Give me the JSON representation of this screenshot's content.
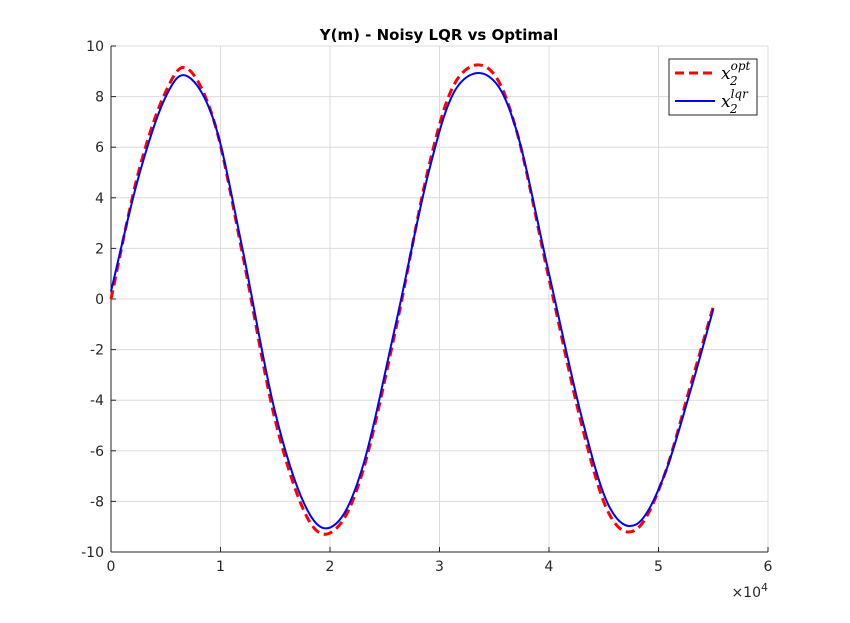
{
  "chart_data": {
    "type": "line",
    "title": "Y(m) - Noisy LQR vs Optimal",
    "xlabel": "",
    "ylabel": "",
    "x_scale_label": "×10",
    "x_scale_exponent": "4",
    "xlim": [
      0,
      60000
    ],
    "ylim": [
      -10,
      10
    ],
    "xticks": [
      0,
      10000,
      20000,
      30000,
      40000,
      50000,
      60000
    ],
    "xtick_labels": [
      "0",
      "1",
      "2",
      "3",
      "4",
      "5",
      "6"
    ],
    "yticks": [
      -10,
      -8,
      -6,
      -4,
      -2,
      0,
      2,
      4,
      6,
      8,
      10
    ],
    "ytick_labels": [
      "-10",
      "-8",
      "-6",
      "-4",
      "-2",
      "0",
      "2",
      "4",
      "6",
      "8",
      "10"
    ],
    "grid": true,
    "legend_position": "top-right",
    "series": [
      {
        "name": "x2 opt",
        "legend_base": "x",
        "legend_sub": "2",
        "legend_sup": "opt",
        "color": "#ff0000",
        "style": "dashed",
        "x": [
          0,
          2500,
          5000,
          7000,
          9500,
          12000,
          15000,
          18000,
          20500,
          23000,
          26000,
          29000,
          31500,
          34500,
          37000,
          40000,
          43000,
          45500,
          48000,
          50500,
          53000,
          55000
        ],
        "y": [
          0.0,
          5.0,
          8.2,
          9.1,
          6.9,
          1.8,
          -4.8,
          -8.7,
          -9.1,
          -6.8,
          -1.2,
          5.2,
          8.6,
          9.1,
          6.7,
          0.8,
          -5.0,
          -8.5,
          -9.1,
          -7.0,
          -3.3,
          -0.3
        ]
      },
      {
        "name": "x2 lqr",
        "legend_base": "x",
        "legend_sub": "2",
        "legend_sup": "lqr",
        "color": "#0000ff",
        "style": "solid",
        "x": [
          0,
          2500,
          5000,
          7000,
          9500,
          12000,
          15000,
          18000,
          20500,
          23000,
          26000,
          29000,
          31500,
          34500,
          37000,
          40000,
          43000,
          45500,
          48000,
          50500,
          53000,
          55000
        ],
        "y": [
          0.3,
          4.8,
          8.0,
          8.8,
          6.9,
          2.0,
          -4.5,
          -8.4,
          -8.9,
          -6.6,
          -1.0,
          5.0,
          8.3,
          8.8,
          6.7,
          1.0,
          -4.7,
          -8.2,
          -8.9,
          -7.0,
          -3.5,
          -0.4
        ]
      }
    ]
  }
}
